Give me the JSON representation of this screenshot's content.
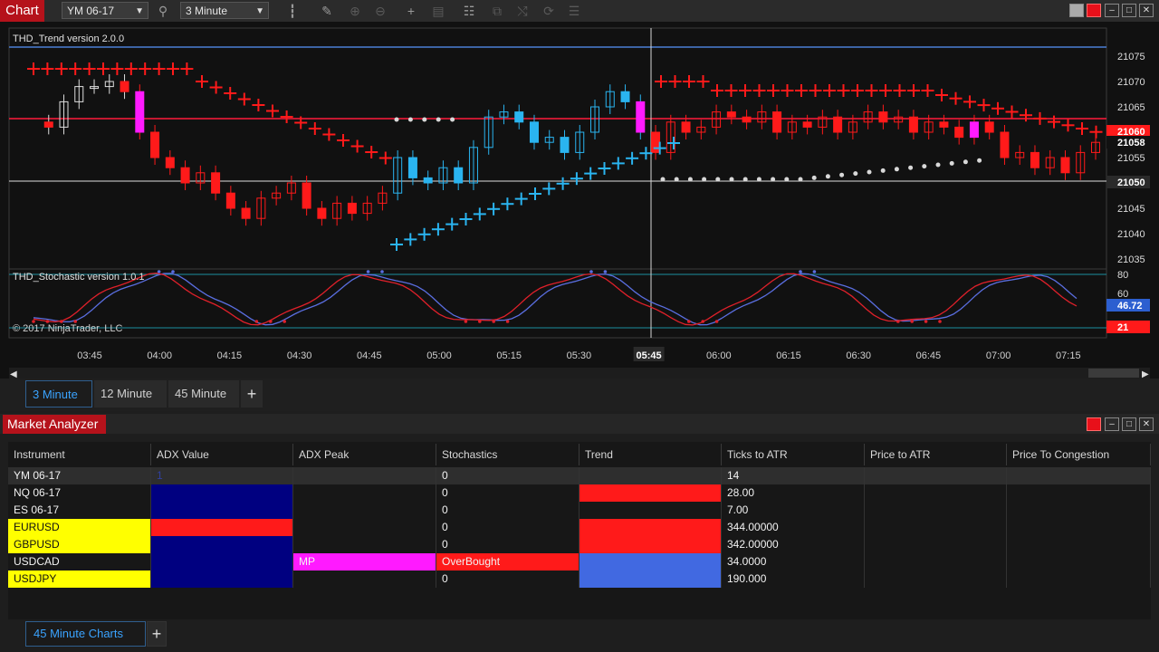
{
  "chart_window": {
    "title": "Chart",
    "instrument": "YM 06-17",
    "timeframe": "3 Minute",
    "indicator_top": "THD_Trend version 2.0.0",
    "indicator_bottom": "THD_Stochastic version 1.0.1",
    "copyright": "© 2017 NinjaTrader, LLC",
    "price_ticks": [
      "21075",
      "21070",
      "21065",
      "21060",
      "21055",
      "21050",
      "21045",
      "21040",
      "21035"
    ],
    "price_marker_top": "21060",
    "price_marker_mid": "21058",
    "price_marker_low": "21050",
    "stoch_ticks": [
      "80",
      "60"
    ],
    "stoch_badge_blue": "46.72",
    "stoch_badge_red": "21",
    "time_ticks": [
      "03:45",
      "04:00",
      "04:15",
      "04:30",
      "04:45",
      "05:00",
      "05:15",
      "05:30",
      "05:45",
      "06:00",
      "06:15",
      "06:30",
      "06:45",
      "07:00",
      "07:15"
    ],
    "cursor_time": "05:45",
    "tabs": [
      "3 Minute",
      "12 Minute",
      "45 Minute"
    ],
    "add_tab": "+"
  },
  "colors": {
    "bull": "#2ab4f0",
    "bear": "#ff1a1a",
    "magenta": "#ff1aff",
    "navy": "#000080",
    "yellow": "#ffff00",
    "steel": "#4169e1"
  },
  "icons": [
    "search-icon",
    "candlestick-icon",
    "pencil-icon",
    "zoom-in-icon",
    "zoom-out-icon",
    "crosshair-icon",
    "properties-icon",
    "strategies-icon",
    "drawing-tools-icon",
    "scroll-icon",
    "indicators-icon",
    "refresh-icon",
    "data-box-icon"
  ],
  "market_analyzer": {
    "title": "Market Analyzer",
    "columns": [
      "Instrument",
      "ADX Value",
      "ADX Peak",
      "Stochastics",
      "Trend",
      "Ticks to ATR",
      "Price to ATR",
      "Price To Congestion"
    ],
    "rows": [
      {
        "instrument": "YM 06-17",
        "adx_value": "1",
        "adx_peak": "",
        "stochastics": "0",
        "trend": "",
        "ticks_to_atr": "14",
        "price_to_atr": "",
        "price_to_congestion": ""
      },
      {
        "instrument": "NQ 06-17",
        "adx_value": "",
        "adx_peak": "",
        "stochastics": "0",
        "trend": "",
        "ticks_to_atr": "28.00",
        "price_to_atr": "",
        "price_to_congestion": ""
      },
      {
        "instrument": "ES 06-17",
        "adx_value": "",
        "adx_peak": "",
        "stochastics": "0",
        "trend": "",
        "ticks_to_atr": "7.00",
        "price_to_atr": "",
        "price_to_congestion": ""
      },
      {
        "instrument": "EURUSD",
        "adx_value": "",
        "adx_peak": "",
        "stochastics": "0",
        "trend": "",
        "ticks_to_atr": "344.00000",
        "price_to_atr": "",
        "price_to_congestion": ""
      },
      {
        "instrument": "GBPUSD",
        "adx_value": "",
        "adx_peak": "",
        "stochastics": "0",
        "trend": "",
        "ticks_to_atr": "342.00000",
        "price_to_atr": "",
        "price_to_congestion": ""
      },
      {
        "instrument": "USDCAD",
        "adx_value": "",
        "adx_peak": "MP",
        "stochastics": "OverBought",
        "trend": "",
        "ticks_to_atr": "34.0000",
        "price_to_atr": "",
        "price_to_congestion": ""
      },
      {
        "instrument": "USDJPY",
        "adx_value": "",
        "adx_peak": "",
        "stochastics": "0",
        "trend": "",
        "ticks_to_atr": "190.000",
        "price_to_atr": "",
        "price_to_congestion": ""
      }
    ],
    "tab": "45 Minute Charts",
    "add_tab": "+"
  }
}
